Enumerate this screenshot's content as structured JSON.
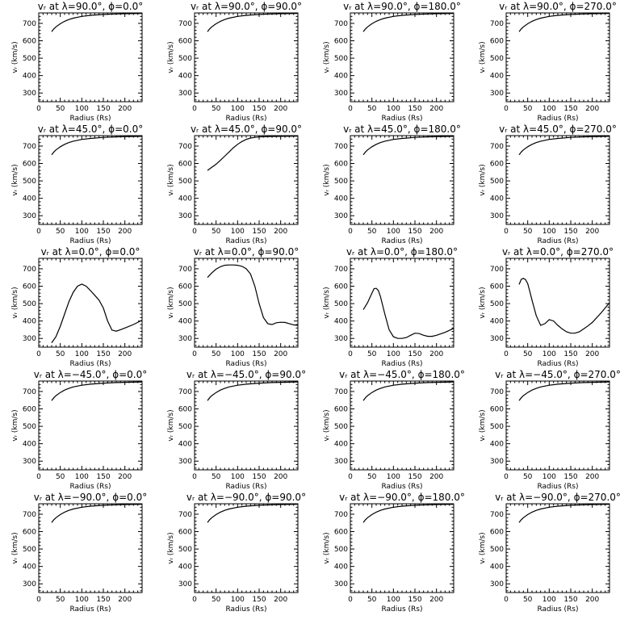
{
  "chart_data": [
    {
      "type": "line",
      "title": "vᵣ at λ=90.0°, ϕ=0.0°",
      "xlabel": "Radius (Rs)",
      "ylabel": "vᵣ (km/s)",
      "xlim": [
        0,
        240
      ],
      "ylim": [
        250,
        760
      ],
      "xticks": [
        0,
        50,
        100,
        150,
        200
      ],
      "yticks": [
        300,
        400,
        500,
        600,
        700
      ],
      "grid": false,
      "x": [
        30,
        35,
        40,
        50,
        60,
        70,
        80,
        100,
        120,
        150,
        180,
        210,
        240
      ],
      "y": [
        652,
        668,
        680,
        698,
        712,
        722,
        730,
        740,
        746,
        751,
        754,
        756,
        757
      ]
    },
    {
      "type": "line",
      "title": "vᵣ at λ=90.0°, ϕ=90.0°",
      "xlabel": "Radius (Rs)",
      "ylabel": "vᵣ (km/s)",
      "xlim": [
        0,
        240
      ],
      "ylim": [
        250,
        760
      ],
      "xticks": [
        0,
        50,
        100,
        150,
        200
      ],
      "yticks": [
        300,
        400,
        500,
        600,
        700
      ],
      "grid": false,
      "x": [
        30,
        35,
        40,
        50,
        60,
        70,
        80,
        100,
        120,
        150,
        180,
        210,
        240
      ],
      "y": [
        652,
        668,
        680,
        698,
        712,
        722,
        730,
        740,
        746,
        751,
        754,
        756,
        757
      ]
    },
    {
      "type": "line",
      "title": "vᵣ at λ=90.0°, ϕ=180.0°",
      "xlabel": "Radius (Rs)",
      "ylabel": "vᵣ (km/s)",
      "xlim": [
        0,
        240
      ],
      "ylim": [
        250,
        760
      ],
      "xticks": [
        0,
        50,
        100,
        150,
        200
      ],
      "yticks": [
        300,
        400,
        500,
        600,
        700
      ],
      "grid": false,
      "x": [
        30,
        35,
        40,
        50,
        60,
        70,
        80,
        100,
        120,
        150,
        180,
        210,
        240
      ],
      "y": [
        652,
        668,
        680,
        698,
        712,
        722,
        730,
        740,
        746,
        751,
        754,
        756,
        757
      ]
    },
    {
      "type": "line",
      "title": "vᵣ at λ=90.0°, ϕ=270.0°",
      "xlabel": "Radius (Rs)",
      "ylabel": "vᵣ (km/s)",
      "xlim": [
        0,
        240
      ],
      "ylim": [
        250,
        760
      ],
      "xticks": [
        0,
        50,
        100,
        150,
        200
      ],
      "yticks": [
        300,
        400,
        500,
        600,
        700
      ],
      "grid": false,
      "x": [
        30,
        35,
        40,
        50,
        60,
        70,
        80,
        100,
        120,
        150,
        180,
        210,
        240
      ],
      "y": [
        652,
        668,
        680,
        698,
        712,
        722,
        730,
        740,
        746,
        751,
        754,
        756,
        757
      ]
    },
    {
      "type": "line",
      "title": "vᵣ at λ=45.0°, ϕ=0.0°",
      "xlabel": "Radius (Rs)",
      "ylabel": "vᵣ (km/s)",
      "xlim": [
        0,
        240
      ],
      "ylim": [
        250,
        760
      ],
      "xticks": [
        0,
        50,
        100,
        150,
        200
      ],
      "yticks": [
        300,
        400,
        500,
        600,
        700
      ],
      "grid": false,
      "x": [
        30,
        35,
        40,
        50,
        60,
        70,
        80,
        100,
        120,
        150,
        180,
        210,
        240
      ],
      "y": [
        650,
        666,
        678,
        696,
        710,
        720,
        728,
        738,
        744,
        750,
        753,
        755,
        756
      ]
    },
    {
      "type": "line",
      "title": "vᵣ at λ=45.0°, ϕ=90.0°",
      "xlabel": "Radius (Rs)",
      "ylabel": "vᵣ (km/s)",
      "xlim": [
        0,
        240
      ],
      "ylim": [
        250,
        760
      ],
      "xticks": [
        0,
        50,
        100,
        150,
        200
      ],
      "yticks": [
        300,
        400,
        500,
        600,
        700
      ],
      "grid": false,
      "x": [
        30,
        40,
        50,
        60,
        70,
        80,
        90,
        100,
        110,
        120,
        130,
        140,
        150,
        170,
        200,
        240
      ],
      "y": [
        560,
        578,
        596,
        618,
        642,
        666,
        690,
        710,
        726,
        738,
        746,
        750,
        753,
        755,
        756,
        757
      ]
    },
    {
      "type": "line",
      "title": "vᵣ at λ=45.0°, ϕ=180.0°",
      "xlabel": "Radius (Rs)",
      "ylabel": "vᵣ (km/s)",
      "xlim": [
        0,
        240
      ],
      "ylim": [
        250,
        760
      ],
      "xticks": [
        0,
        50,
        100,
        150,
        200
      ],
      "yticks": [
        300,
        400,
        500,
        600,
        700
      ],
      "grid": false,
      "x": [
        30,
        35,
        40,
        50,
        60,
        70,
        80,
        100,
        120,
        150,
        180,
        210,
        240
      ],
      "y": [
        650,
        666,
        678,
        696,
        710,
        720,
        728,
        738,
        744,
        750,
        753,
        755,
        756
      ]
    },
    {
      "type": "line",
      "title": "vᵣ at λ=45.0°, ϕ=270.0°",
      "xlabel": "Radius (Rs)",
      "ylabel": "vᵣ (km/s)",
      "xlim": [
        0,
        240
      ],
      "ylim": [
        250,
        760
      ],
      "xticks": [
        0,
        50,
        100,
        150,
        200
      ],
      "yticks": [
        300,
        400,
        500,
        600,
        700
      ],
      "grid": false,
      "x": [
        30,
        35,
        40,
        50,
        60,
        70,
        80,
        100,
        120,
        150,
        180,
        210,
        240
      ],
      "y": [
        650,
        666,
        678,
        696,
        710,
        720,
        728,
        738,
        744,
        750,
        753,
        755,
        756
      ]
    },
    {
      "type": "line",
      "title": "vᵣ at λ=0.0°, ϕ=0.0°",
      "xlabel": "Radius (Rs)",
      "ylabel": "vᵣ (km/s)",
      "xlim": [
        0,
        240
      ],
      "ylim": [
        250,
        760
      ],
      "xticks": [
        0,
        50,
        100,
        150,
        200
      ],
      "yticks": [
        300,
        400,
        500,
        600,
        700
      ],
      "grid": false,
      "x": [
        30,
        40,
        50,
        60,
        70,
        80,
        90,
        100,
        110,
        120,
        130,
        140,
        150,
        160,
        170,
        180,
        190,
        200,
        220,
        240
      ],
      "y": [
        275,
        310,
        370,
        440,
        510,
        565,
        600,
        612,
        600,
        575,
        548,
        520,
        475,
        400,
        348,
        342,
        350,
        360,
        380,
        405
      ]
    },
    {
      "type": "line",
      "title": "vᵣ at λ=0.0°, ϕ=90.0°",
      "xlabel": "Radius (Rs)",
      "ylabel": "vᵣ (km/s)",
      "xlim": [
        0,
        240
      ],
      "ylim": [
        250,
        760
      ],
      "xticks": [
        0,
        50,
        100,
        150,
        200
      ],
      "yticks": [
        300,
        400,
        500,
        600,
        700
      ],
      "grid": false,
      "x": [
        30,
        40,
        50,
        60,
        70,
        80,
        90,
        100,
        110,
        120,
        130,
        140,
        150,
        160,
        170,
        180,
        190,
        200,
        210,
        220,
        230,
        240
      ],
      "y": [
        650,
        676,
        698,
        712,
        720,
        722,
        722,
        720,
        714,
        700,
        670,
        600,
        500,
        420,
        385,
        380,
        390,
        393,
        392,
        385,
        378,
        375
      ]
    },
    {
      "type": "line",
      "title": "vᵣ at λ=0.0°, ϕ=180.0°",
      "xlabel": "Radius (Rs)",
      "ylabel": "vᵣ (km/s)",
      "xlim": [
        0,
        240
      ],
      "ylim": [
        250,
        760
      ],
      "xticks": [
        0,
        50,
        100,
        150,
        200
      ],
      "yticks": [
        300,
        400,
        500,
        600,
        700
      ],
      "grid": false,
      "x": [
        30,
        40,
        50,
        55,
        60,
        65,
        70,
        80,
        90,
        100,
        110,
        120,
        130,
        140,
        150,
        160,
        170,
        180,
        190,
        200,
        220,
        240
      ],
      "y": [
        465,
        505,
        560,
        585,
        588,
        575,
        540,
        440,
        350,
        310,
        300,
        300,
        305,
        318,
        330,
        328,
        318,
        312,
        312,
        318,
        335,
        358
      ]
    },
    {
      "type": "line",
      "title": "vᵣ at λ=0.0°, ϕ=270.0°",
      "xlabel": "Radius (Rs)",
      "ylabel": "vᵣ (km/s)",
      "xlim": [
        0,
        240
      ],
      "ylim": [
        250,
        760
      ],
      "xticks": [
        0,
        50,
        100,
        150,
        200
      ],
      "yticks": [
        300,
        400,
        500,
        600,
        700
      ],
      "grid": false,
      "x": [
        30,
        35,
        40,
        45,
        50,
        55,
        60,
        70,
        80,
        90,
        100,
        110,
        120,
        130,
        140,
        150,
        160,
        170,
        180,
        190,
        200,
        220,
        240
      ],
      "y": [
        610,
        640,
        645,
        638,
        615,
        570,
        520,
        430,
        375,
        385,
        408,
        400,
        375,
        355,
        338,
        330,
        330,
        338,
        355,
        372,
        392,
        445,
        505
      ]
    },
    {
      "type": "line",
      "title": "vᵣ at λ=−45.0°, ϕ=0.0°",
      "xlabel": "Radius (Rs)",
      "ylabel": "vᵣ (km/s)",
      "xlim": [
        0,
        240
      ],
      "ylim": [
        250,
        760
      ],
      "xticks": [
        0,
        50,
        100,
        150,
        200
      ],
      "yticks": [
        300,
        400,
        500,
        600,
        700
      ],
      "grid": false,
      "x": [
        30,
        35,
        40,
        50,
        60,
        70,
        80,
        100,
        120,
        150,
        180,
        210,
        240
      ],
      "y": [
        648,
        664,
        676,
        694,
        708,
        718,
        726,
        736,
        742,
        748,
        751,
        753,
        755
      ]
    },
    {
      "type": "line",
      "title": "vᵣ at λ=−45.0°, ϕ=90.0°",
      "xlabel": "Radius (Rs)",
      "ylabel": "vᵣ (km/s)",
      "xlim": [
        0,
        240
      ],
      "ylim": [
        250,
        760
      ],
      "xticks": [
        0,
        50,
        100,
        150,
        200
      ],
      "yticks": [
        300,
        400,
        500,
        600,
        700
      ],
      "grid": false,
      "x": [
        30,
        35,
        40,
        50,
        60,
        70,
        80,
        100,
        120,
        150,
        180,
        210,
        240
      ],
      "y": [
        648,
        664,
        676,
        694,
        708,
        718,
        726,
        736,
        742,
        748,
        751,
        753,
        755
      ]
    },
    {
      "type": "line",
      "title": "vᵣ at λ=−45.0°, ϕ=180.0°",
      "xlabel": "Radius (Rs)",
      "ylabel": "vᵣ (km/s)",
      "xlim": [
        0,
        240
      ],
      "ylim": [
        250,
        760
      ],
      "xticks": [
        0,
        50,
        100,
        150,
        200
      ],
      "yticks": [
        300,
        400,
        500,
        600,
        700
      ],
      "grid": false,
      "x": [
        30,
        35,
        40,
        50,
        60,
        70,
        80,
        100,
        120,
        150,
        180,
        210,
        240
      ],
      "y": [
        648,
        664,
        676,
        694,
        708,
        718,
        726,
        736,
        742,
        748,
        751,
        753,
        755
      ]
    },
    {
      "type": "line",
      "title": "vᵣ at λ=−45.0°, ϕ=270.0°",
      "xlabel": "Radius (Rs)",
      "ylabel": "vᵣ (km/s)",
      "xlim": [
        0,
        240
      ],
      "ylim": [
        250,
        760
      ],
      "xticks": [
        0,
        50,
        100,
        150,
        200
      ],
      "yticks": [
        300,
        400,
        500,
        600,
        700
      ],
      "grid": false,
      "x": [
        30,
        35,
        40,
        50,
        60,
        70,
        80,
        100,
        120,
        150,
        180,
        210,
        240
      ],
      "y": [
        648,
        664,
        676,
        694,
        708,
        718,
        726,
        736,
        742,
        748,
        751,
        753,
        755
      ]
    },
    {
      "type": "line",
      "title": "vᵣ at λ=−90.0°, ϕ=0.0°",
      "xlabel": "Radius (Rs)",
      "ylabel": "vᵣ (km/s)",
      "xlim": [
        0,
        240
      ],
      "ylim": [
        250,
        760
      ],
      "xticks": [
        0,
        50,
        100,
        150,
        200
      ],
      "yticks": [
        300,
        400,
        500,
        600,
        700
      ],
      "grid": false,
      "x": [
        30,
        35,
        40,
        50,
        60,
        70,
        80,
        100,
        120,
        150,
        180,
        210,
        240
      ],
      "y": [
        652,
        668,
        680,
        698,
        712,
        722,
        730,
        740,
        746,
        751,
        754,
        756,
        757
      ]
    },
    {
      "type": "line",
      "title": "vᵣ at λ=−90.0°, ϕ=90.0°",
      "xlabel": "Radius (Rs)",
      "ylabel": "vᵣ (km/s)",
      "xlim": [
        0,
        240
      ],
      "ylim": [
        250,
        760
      ],
      "xticks": [
        0,
        50,
        100,
        150,
        200
      ],
      "yticks": [
        300,
        400,
        500,
        600,
        700
      ],
      "grid": false,
      "x": [
        30,
        35,
        40,
        50,
        60,
        70,
        80,
        100,
        120,
        150,
        180,
        210,
        240
      ],
      "y": [
        652,
        668,
        680,
        698,
        712,
        722,
        730,
        740,
        746,
        751,
        754,
        756,
        757
      ]
    },
    {
      "type": "line",
      "title": "vᵣ at λ=−90.0°, ϕ=180.0°",
      "xlabel": "Radius (Rs)",
      "ylabel": "vᵣ (km/s)",
      "xlim": [
        0,
        240
      ],
      "ylim": [
        250,
        760
      ],
      "xticks": [
        0,
        50,
        100,
        150,
        200
      ],
      "yticks": [
        300,
        400,
        500,
        600,
        700
      ],
      "grid": false,
      "x": [
        30,
        35,
        40,
        50,
        60,
        70,
        80,
        100,
        120,
        150,
        180,
        210,
        240
      ],
      "y": [
        652,
        668,
        680,
        698,
        712,
        722,
        730,
        740,
        746,
        751,
        754,
        756,
        757
      ]
    },
    {
      "type": "line",
      "title": "vᵣ at λ=−90.0°, ϕ=270.0°",
      "xlabel": "Radius (Rs)",
      "ylabel": "vᵣ (km/s)",
      "xlim": [
        0,
        240
      ],
      "ylim": [
        250,
        760
      ],
      "xticks": [
        0,
        50,
        100,
        150,
        200
      ],
      "yticks": [
        300,
        400,
        500,
        600,
        700
      ],
      "grid": false,
      "x": [
        30,
        35,
        40,
        50,
        60,
        70,
        80,
        100,
        120,
        150,
        180,
        210,
        240
      ],
      "y": [
        652,
        668,
        680,
        698,
        712,
        722,
        730,
        740,
        746,
        751,
        754,
        756,
        757
      ]
    }
  ]
}
